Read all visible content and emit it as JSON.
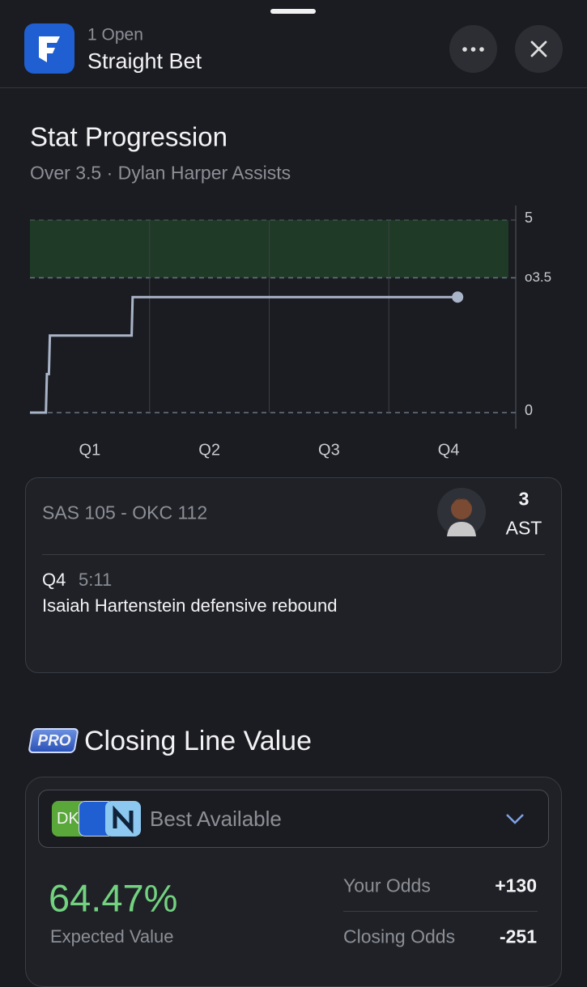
{
  "header": {
    "count": "1 Open",
    "title": "Straight Bet"
  },
  "chart_data": {
    "type": "line",
    "title": "Stat Progression",
    "subtitle": "Over 3.5 · Dylan Harper Assists",
    "x": [
      0,
      1.6,
      1.7,
      1.9,
      2.0,
      10.2,
      10.3,
      42.9
    ],
    "series": [
      {
        "name": "Assists",
        "color": "#a9b4c8",
        "values": [
          0,
          0,
          1,
          1,
          2,
          2,
          3,
          3
        ]
      }
    ],
    "xlim": [
      0,
      48
    ],
    "xticks": [
      {
        "value": 6,
        "label": "Q1"
      },
      {
        "value": 18,
        "label": "Q2"
      },
      {
        "value": 30,
        "label": "Q3"
      },
      {
        "value": 42,
        "label": "Q4"
      }
    ],
    "ylim": [
      0,
      5
    ],
    "yticks": [
      0,
      {
        "value": 3.5,
        "label": "o3.5"
      },
      5
    ],
    "band_color": "#1f3a27",
    "grid": true
  },
  "live": {
    "score": "SAS 105 - OKC 112",
    "stat_value": 3,
    "stat_label": "AST",
    "period": "Q4",
    "clock": "5:11",
    "play": "Isaiah Hartenstein defensive rebound"
  },
  "clv": {
    "badge": "PRO",
    "title": "Closing Line Value",
    "book": "DK",
    "selector": "Best Available",
    "expected_value": "64.47%",
    "expected_value_label": "Expected Value",
    "rows": [
      {
        "label": "Your Odds",
        "value": "+130"
      },
      {
        "label": "Closing Odds",
        "value": "-251"
      }
    ]
  }
}
